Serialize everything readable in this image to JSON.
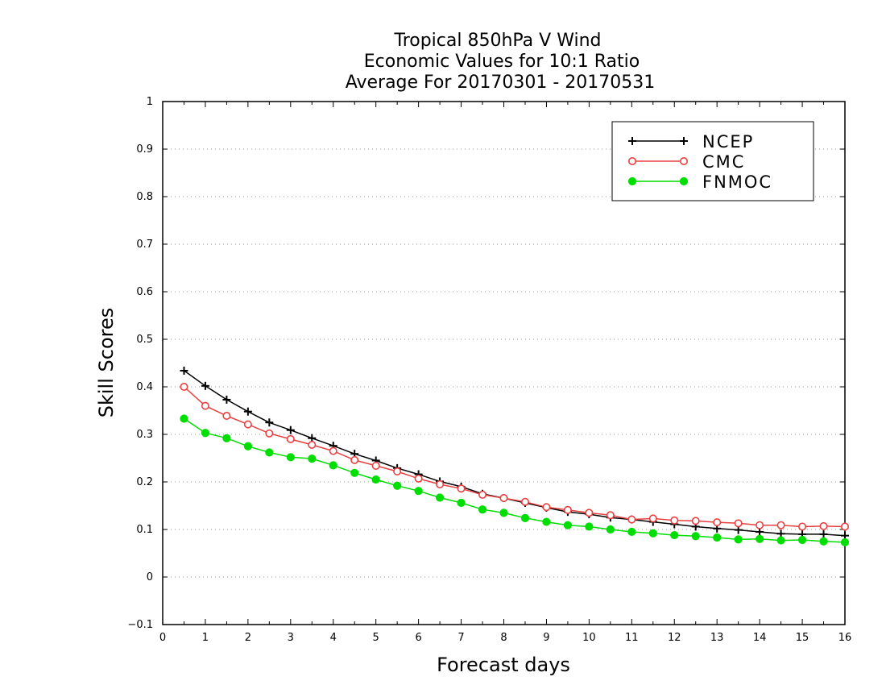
{
  "chart_data": {
    "type": "line",
    "title": [
      "Tropical 850hPa V Wind",
      "Economic Values for 10:1 Ratio",
      "Average For 20170301 - 20170531"
    ],
    "xlabel": "Forecast days",
    "ylabel": "Skill Scores",
    "xlim": [
      0,
      16
    ],
    "ylim": [
      -0.1,
      1
    ],
    "x_ticks": [
      "0",
      "1",
      "2",
      "3",
      "4",
      "5",
      "6",
      "7",
      "8",
      "9",
      "10",
      "11",
      "12",
      "13",
      "14",
      "15",
      "16"
    ],
    "y_ticks": [
      "−0.1",
      "0",
      "0.1",
      "0.2",
      "0.3",
      "0.4",
      "0.5",
      "0.6",
      "0.7",
      "0.8",
      "0.9",
      "1"
    ],
    "grid": "horizontal dotted",
    "legend_position": "top-right",
    "x": [
      0.5,
      1,
      1.5,
      2,
      2.5,
      3,
      3.5,
      4,
      4.5,
      5,
      5.5,
      6,
      6.5,
      7,
      7.5,
      8,
      8.5,
      9,
      9.5,
      10,
      10.5,
      11,
      11.5,
      12,
      12.5,
      13,
      13.5,
      14,
      14.5,
      15,
      15.5,
      16
    ],
    "series": [
      {
        "name": "NCEP",
        "color": "#000000",
        "marker": "plus",
        "values": [
          0.434,
          0.402,
          0.373,
          0.348,
          0.325,
          0.309,
          0.292,
          0.276,
          0.259,
          0.245,
          0.229,
          0.216,
          0.201,
          0.19,
          0.175,
          0.166,
          0.156,
          0.146,
          0.137,
          0.132,
          0.125,
          0.121,
          0.116,
          0.111,
          0.106,
          0.102,
          0.099,
          0.095,
          0.091,
          0.09,
          0.09,
          0.087
        ]
      },
      {
        "name": "CMC",
        "color": "#e84040",
        "marker": "open-circle",
        "values": [
          0.4,
          0.36,
          0.339,
          0.321,
          0.302,
          0.29,
          0.278,
          0.265,
          0.246,
          0.234,
          0.222,
          0.207,
          0.195,
          0.186,
          0.173,
          0.166,
          0.158,
          0.147,
          0.141,
          0.135,
          0.13,
          0.121,
          0.123,
          0.119,
          0.118,
          0.115,
          0.113,
          0.109,
          0.109,
          0.106,
          0.107,
          0.106
        ]
      },
      {
        "name": "FNMOC",
        "color": "#00dd00",
        "marker": "filled-circle",
        "values": [
          0.333,
          0.303,
          0.292,
          0.275,
          0.262,
          0.252,
          0.249,
          0.235,
          0.219,
          0.205,
          0.192,
          0.181,
          0.167,
          0.156,
          0.142,
          0.135,
          0.124,
          0.116,
          0.109,
          0.106,
          0.1,
          0.095,
          0.092,
          0.088,
          0.086,
          0.083,
          0.079,
          0.08,
          0.077,
          0.078,
          0.075,
          0.073
        ]
      }
    ]
  }
}
